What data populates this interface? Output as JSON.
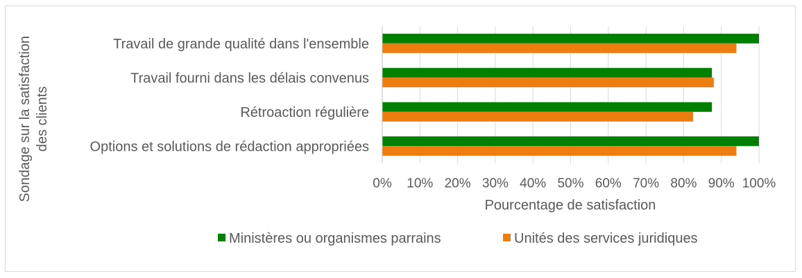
{
  "chart_data": {
    "type": "bar",
    "orientation": "horizontal",
    "categories": [
      "Travail de grande qualité dans l'ensemble",
      "Travail fourni dans les délais convenus",
      "Rétroaction régulière",
      "Options et solutions de rédaction appropriées"
    ],
    "series": [
      {
        "name": "Ministères ou organismes parrains",
        "color": "#008000",
        "values": [
          100,
          87.5,
          87.5,
          100
        ]
      },
      {
        "name": "Unités des services juridiques",
        "color": "#ED7D0F",
        "values": [
          94,
          88,
          82.5,
          94
        ]
      }
    ],
    "xlabel": "Pourcentage de satisfaction",
    "ylabel_lines": [
      "Sondage sur la satisfaction",
      "des clients"
    ],
    "xlim": [
      0,
      100
    ],
    "xticks": [
      "0%",
      "10%",
      "20%",
      "30%",
      "40%",
      "50%",
      "60%",
      "70%",
      "80%",
      "90%",
      "100%"
    ],
    "grid": true,
    "legend_position": "bottom"
  }
}
